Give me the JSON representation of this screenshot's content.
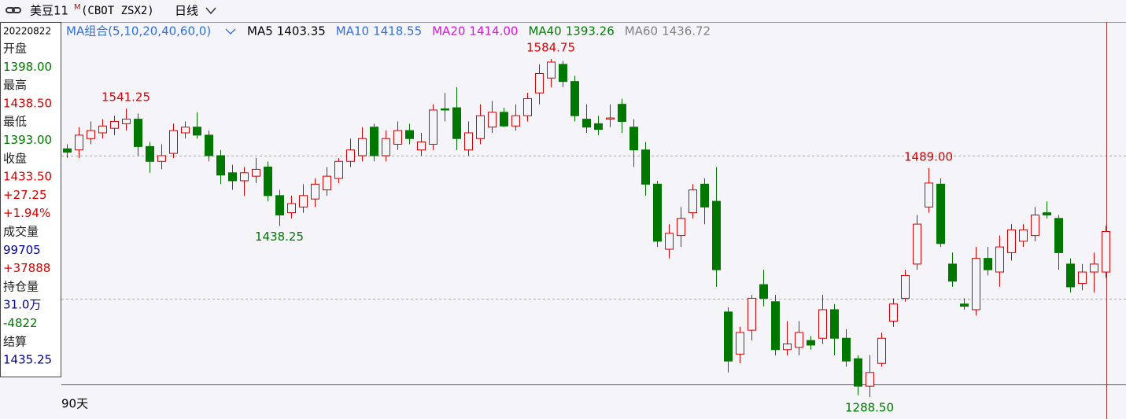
{
  "chart_data": {
    "type": "candlestick",
    "title": "美豆11",
    "title_sup": "M",
    "symbol": "(CBOT ZSX2)",
    "period": "日线",
    "ma_label": "MA组合(5,10,20,40,60,0)",
    "ma": [
      {
        "name": "MA5",
        "value": "1403.35",
        "color": "#000000"
      },
      {
        "name": "MA10",
        "value": "1418.55",
        "color": "#2f6fd8"
      },
      {
        "name": "MA20",
        "value": "1414.00",
        "color": "#e010e0"
      },
      {
        "name": "MA40",
        "value": "1393.26",
        "color": "#008000"
      },
      {
        "name": "MA60",
        "value": "1436.72",
        "color": "#808080"
      }
    ],
    "range_label": "90天",
    "up_color": "#d80000",
    "down_color": "#007800",
    "open": [
      1506,
      1505,
      1515,
      1520,
      1524,
      1528,
      1532,
      1508,
      1495,
      1502,
      1520,
      1525,
      1518,
      1500,
      1485,
      1478,
      1482,
      1490,
      1465,
      1450,
      1455,
      1462,
      1470,
      1480,
      1495,
      1500,
      1525,
      1500,
      1510,
      1522,
      1505,
      1510,
      1541,
      1542,
      1505,
      1515,
      1525,
      1538,
      1526,
      1535,
      1555,
      1568,
      1580,
      1565,
      1532,
      1528,
      1532,
      1545,
      1525,
      1505,
      1475,
      1418,
      1430,
      1450,
      1475,
      1460,
      1363,
      1326,
      1347,
      1387,
      1372,
      1330,
      1332,
      1338,
      1340,
      1365,
      1340,
      1322,
      1298,
      1318,
      1355,
      1375,
      1405,
      1455,
      1475,
      1405,
      1370,
      1365,
      1410,
      1398,
      1415,
      1425,
      1430,
      1450,
      1445,
      1405,
      1388,
      1398,
      1398
    ],
    "high": [
      1510,
      1525,
      1530,
      1532,
      1535,
      1541.25,
      1537,
      1512,
      1510,
      1528,
      1530,
      1538,
      1522,
      1505,
      1492,
      1490,
      1498,
      1495,
      1470,
      1465,
      1475,
      1480,
      1490,
      1498,
      1515,
      1525,
      1528,
      1522,
      1530,
      1528,
      1520,
      1545,
      1555,
      1560,
      1530,
      1545,
      1548,
      1542,
      1545,
      1555,
      1580,
      1584.75,
      1583,
      1570,
      1545,
      1535,
      1545,
      1550,
      1532,
      1512,
      1478,
      1440,
      1455,
      1475,
      1480,
      1490,
      1367,
      1350,
      1378,
      1400,
      1378,
      1355,
      1355,
      1342,
      1378,
      1370,
      1348,
      1325,
      1325,
      1345,
      1375,
      1400,
      1448,
      1489,
      1480,
      1415,
      1375,
      1420,
      1420,
      1430,
      1440,
      1440,
      1455,
      1460,
      1448,
      1410,
      1405,
      1415,
      1438.5
    ],
    "low": [
      1498,
      1498,
      1510,
      1515,
      1518,
      1522,
      1500,
      1485,
      1488,
      1498,
      1515,
      1515,
      1495,
      1475,
      1470,
      1465,
      1476,
      1460,
      1438.25,
      1445,
      1450,
      1455,
      1465,
      1476,
      1490,
      1495,
      1495,
      1495,
      1505,
      1510,
      1500,
      1505,
      1530,
      1505,
      1500,
      1510,
      1520,
      1525,
      1522,
      1530,
      1545,
      1560,
      1560,
      1530,
      1520,
      1518,
      1525,
      1520,
      1490,
      1465,
      1420,
      1410,
      1420,
      1445,
      1440,
      1385,
      1310,
      1318,
      1338,
      1368,
      1325,
      1325,
      1325,
      1330,
      1335,
      1325,
      1315,
      1290,
      1288.5,
      1315,
      1350,
      1372,
      1400,
      1450,
      1420,
      1385,
      1365,
      1360,
      1395,
      1385,
      1408,
      1420,
      1425,
      1445,
      1400,
      1380,
      1382,
      1380,
      1393
    ],
    "close": [
      1503,
      1518,
      1522,
      1526,
      1530,
      1532,
      1508,
      1495,
      1500,
      1522,
      1525,
      1518,
      1500,
      1483,
      1478,
      1485,
      1488,
      1465,
      1448,
      1458,
      1465,
      1475,
      1482,
      1495,
      1505,
      1515,
      1500,
      1515,
      1522,
      1515,
      1512,
      1540,
      1540,
      1515,
      1520,
      1535,
      1538,
      1526,
      1535,
      1550,
      1572,
      1582,
      1565,
      1535,
      1525,
      1523,
      1533,
      1530,
      1505,
      1475,
      1425,
      1432,
      1445,
      1470,
      1455,
      1400,
      1320,
      1345,
      1375,
      1375,
      1330,
      1335,
      1345,
      1334,
      1365,
      1340,
      1320,
      1298,
      1310,
      1340,
      1370,
      1395,
      1440,
      1476,
      1423,
      1390,
      1368,
      1410,
      1400,
      1420,
      1435,
      1435,
      1448,
      1448,
      1415,
      1385,
      1398,
      1405,
      1433.5
    ],
    "annotations": [
      "1541.25",
      "1584.75",
      "1438.25",
      "1489.00",
      "1288.50"
    ]
  },
  "info": {
    "date": "20220822",
    "rows": [
      {
        "text": "开盘",
        "color": "#202020"
      },
      {
        "text": "1398.00",
        "color": "#007800"
      },
      {
        "text": "最高",
        "color": "#202020"
      },
      {
        "text": "1438.50",
        "color": "#d80000"
      },
      {
        "text": "最低",
        "color": "#202020"
      },
      {
        "text": "1393.00",
        "color": "#007800"
      },
      {
        "text": "收盘",
        "color": "#202020"
      },
      {
        "text": "1433.50",
        "color": "#d80000"
      },
      {
        "text": "+27.25",
        "color": "#d80000"
      },
      {
        "text": "+1.94%",
        "color": "#d80000"
      },
      {
        "text": "成交量",
        "color": "#202020"
      },
      {
        "text": "99705",
        "color": "#000090"
      },
      {
        "text": "+37888",
        "color": "#d80000"
      },
      {
        "text": "持仓量",
        "color": "#202020"
      },
      {
        "text": "31.0万",
        "color": "#000090"
      },
      {
        "text": "-4822",
        "color": "#007800"
      },
      {
        "text": "结算",
        "color": "#202020"
      },
      {
        "text": "1435.25",
        "color": "#000090"
      }
    ]
  }
}
